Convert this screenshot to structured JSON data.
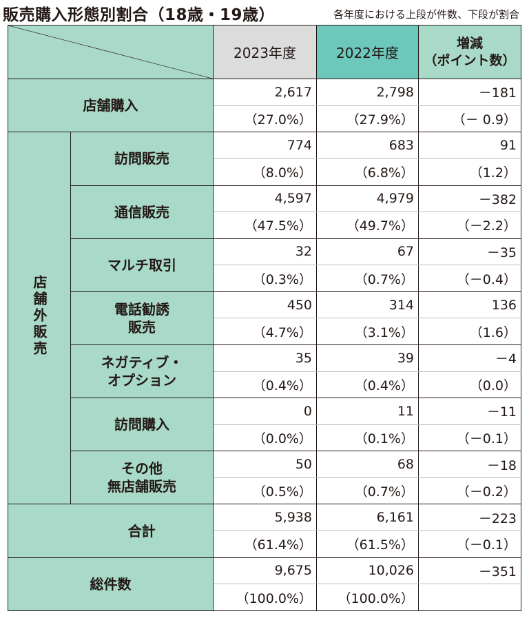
{
  "title": "販売購入形態別割合（18歳・19歳）",
  "note": "各年度における上段が件数、下段が割合",
  "headers": {
    "y2023": "2023年度",
    "y2022": "2022年度",
    "diff": "増減\n（ポイント数）"
  },
  "store": {
    "label": "店舗購入",
    "c2023": "2,617",
    "c2022": "2,798",
    "diff": "－181",
    "p2023": "（27.0%）",
    "p2022": "（27.9%）",
    "pdiff": "（－ 0.9）"
  },
  "offstore_label": "店舗外販売",
  "rows": [
    {
      "label": "訪問販売",
      "c2023": "774",
      "c2022": "683",
      "diff": "91",
      "p2023": "（8.0%）",
      "p2022": "（6.8%）",
      "pdiff": "（1.2）"
    },
    {
      "label": "通信販売",
      "c2023": "4,597",
      "c2022": "4,979",
      "diff": "－382",
      "p2023": "（47.5%）",
      "p2022": "（49.7%）",
      "pdiff": "（－2.2）"
    },
    {
      "label": "マルチ取引",
      "c2023": "32",
      "c2022": "67",
      "diff": "－35",
      "p2023": "（0.3%）",
      "p2022": "（0.7%）",
      "pdiff": "（－0.4）"
    },
    {
      "label": "電話勧誘\n販売",
      "c2023": "450",
      "c2022": "314",
      "diff": "136",
      "p2023": "（4.7%）",
      "p2022": "（3.1%）",
      "pdiff": "（1.6）"
    },
    {
      "label": "ネガティブ・\nオプション",
      "c2023": "35",
      "c2022": "39",
      "diff": "－4",
      "p2023": "（0.4%）",
      "p2022": "（0.4%）",
      "pdiff": "（0.0）"
    },
    {
      "label": "訪問購入",
      "c2023": "0",
      "c2022": "11",
      "diff": "－11",
      "p2023": "（0.0%）",
      "p2022": "（0.1%）",
      "pdiff": "（－0.1）"
    },
    {
      "label": "その他\n無店舗販売",
      "c2023": "50",
      "c2022": "68",
      "diff": "－18",
      "p2023": "（0.5%）",
      "p2022": "（0.7%）",
      "pdiff": "（－0.2）"
    },
    {
      "label": "合計",
      "c2023": "5,938",
      "c2022": "6,161",
      "diff": "－223",
      "p2023": "（61.4%）",
      "p2022": "（61.5%）",
      "pdiff": "（－0.1）"
    }
  ],
  "total": {
    "label": "総件数",
    "c2023": "9,675",
    "c2022": "10,026",
    "diff": "－351",
    "p2023": "（100.0%）",
    "p2022": "（100.0%）",
    "pdiff": ""
  }
}
